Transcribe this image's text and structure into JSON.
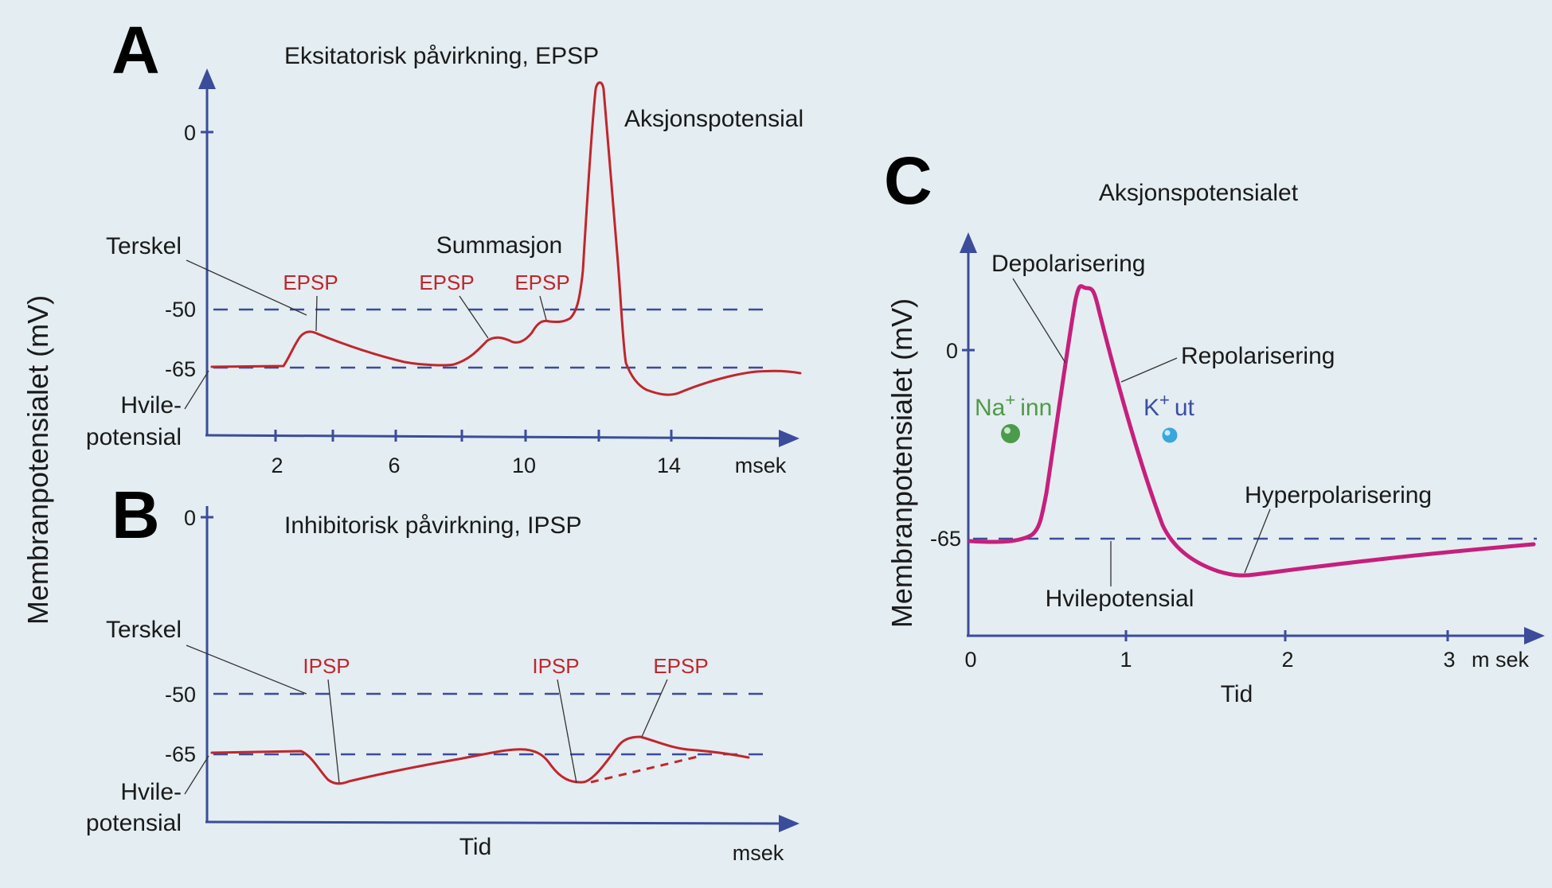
{
  "colors": {
    "background": "#e4edf1",
    "axis": "#3b4c9a",
    "psp_curve": "#c0262c",
    "action_potential_curve": "#c61f7c",
    "na_ion": "#4c9a4c",
    "k_ion": "#3aa6dd",
    "na_label": "#4f9a48",
    "k_label": "#3a4ea2"
  },
  "y_axis_label": "Membranpotensialet (mV)",
  "panel_a": {
    "letter": "A",
    "title": "Eksitatorisk påvirkning, EPSP",
    "y_ticks": [
      "0",
      "-50",
      "-65"
    ],
    "x_ticks": [
      "2",
      "6",
      "10",
      "14"
    ],
    "x_unit": "msek",
    "threshold_label": "Terskel",
    "resting_label_line1": "Hvile-",
    "resting_label_line2": "potensial",
    "summation_label": "Summasjon",
    "action_potential_label": "Aksjonspotensial",
    "psp_labels": [
      "EPSP",
      "EPSP",
      "EPSP"
    ]
  },
  "panel_b": {
    "letter": "B",
    "title": "Inhibitorisk påvirkning, IPSP",
    "y_ticks": [
      "0",
      "-50",
      "-65"
    ],
    "x_label": "Tid",
    "x_unit": "msek",
    "threshold_label": "Terskel",
    "resting_label_line1": "Hvile-",
    "resting_label_line2": "potensial",
    "psp_labels": [
      "IPSP",
      "IPSP",
      "EPSP"
    ]
  },
  "panel_c": {
    "letter": "C",
    "title": "Aksjonspotensialet",
    "y_ticks": [
      "0",
      "-65"
    ],
    "x_ticks": [
      "0",
      "1",
      "2",
      "3"
    ],
    "x_unit": "m sek",
    "x_label": "Tid",
    "depolarization_label": "Depolarisering",
    "repolarization_label": "Repolarisering",
    "hyperpolarization_label": "Hyperpolarisering",
    "resting_label": "Hvilepotensial",
    "na_label": "Na",
    "na_suffix": "inn",
    "k_label": "K",
    "k_suffix": "ut",
    "ion_charge": "+"
  }
}
